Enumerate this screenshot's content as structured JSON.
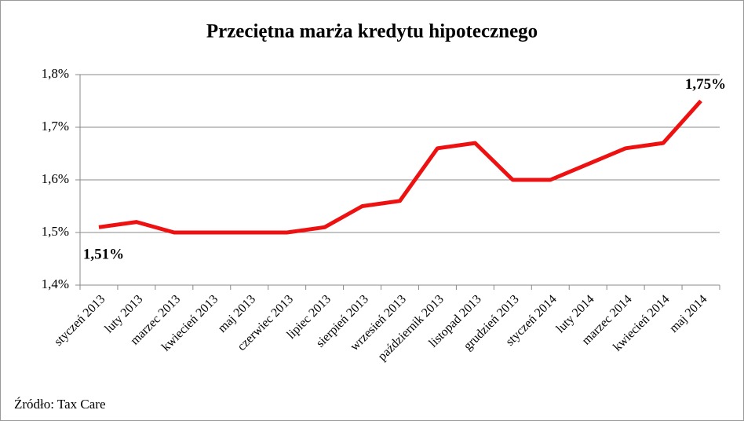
{
  "chart_data": {
    "type": "line",
    "title": "Przeciętna marża kredytu hipotecznego",
    "categories": [
      "styczeń 2013",
      "luty 2013",
      "marzec 2013",
      "kwiecień 2013",
      "maj 2013",
      "czerwiec 2013",
      "lipiec 2013",
      "sierpień 2013",
      "wrzesień 2013",
      "październik 2013",
      "listopad 2013",
      "grudzień 2013",
      "styczeń 2014",
      "luty 2014",
      "marzec 2014",
      "kwiecień 2014",
      "maj 2014"
    ],
    "values": [
      1.51,
      1.52,
      1.5,
      1.5,
      1.5,
      1.5,
      1.51,
      1.55,
      1.56,
      1.66,
      1.67,
      1.6,
      1.6,
      1.63,
      1.66,
      1.67,
      1.75
    ],
    "value_labels": [
      "1,51%",
      null,
      null,
      null,
      null,
      null,
      null,
      null,
      null,
      null,
      null,
      null,
      null,
      null,
      null,
      null,
      "1,75%"
    ],
    "color": "#ee1111",
    "ylim": [
      1.4,
      1.8
    ],
    "yticks": [
      {
        "value": 1.4,
        "label": "1,4%"
      },
      {
        "value": 1.5,
        "label": "1,5%"
      },
      {
        "value": 1.6,
        "label": "1,6%"
      },
      {
        "value": 1.7,
        "label": "1,7%"
      },
      {
        "value": 1.8,
        "label": "1,8%"
      }
    ],
    "grid": true,
    "source": "Źródło: Tax Care"
  }
}
